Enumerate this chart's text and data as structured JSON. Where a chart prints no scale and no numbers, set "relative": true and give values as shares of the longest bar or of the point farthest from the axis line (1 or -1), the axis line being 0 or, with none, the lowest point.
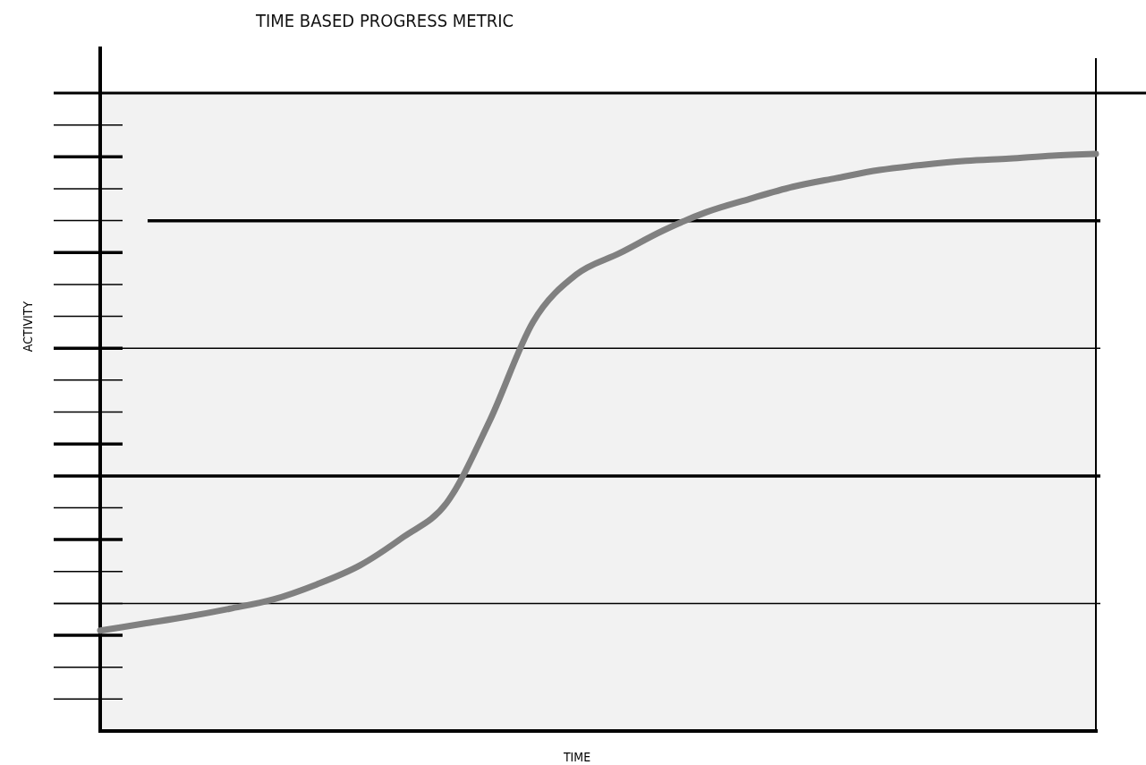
{
  "chart_data": {
    "type": "line",
    "title": "TIME BASED PROGRESS METRIC",
    "xlabel": "TIME",
    "ylabel": "ACTIVITY",
    "relative": true,
    "ref_lines": [
      {
        "axis": "y",
        "value": 0.221,
        "color": "#000000",
        "line_style": "solid"
      },
      {
        "axis": "y",
        "value": 0.442,
        "color": "#000000",
        "line_style": "solid"
      },
      {
        "axis": "y",
        "value": 0.663,
        "color": "#000000",
        "line_style": "solid"
      },
      {
        "axis": "y",
        "value": 0.884,
        "color": "#000000",
        "line_style": "solid"
      }
    ],
    "marker": "none",
    "line_style": "solid",
    "categories": [
      null,
      null,
      null,
      null,
      null,
      null,
      null,
      null,
      null,
      null,
      null,
      null,
      null,
      null,
      null,
      null,
      null,
      null,
      null,
      null,
      null,
      null,
      null,
      null
    ],
    "series": [
      {
        "color": "#808080",
        "values": [
          0.174,
          0.186,
          0.198,
          0.212,
          0.228,
          0.254,
          0.287,
          0.336,
          0.395,
          0.538,
          0.709,
          0.791,
          0.828,
          0.867,
          0.899,
          0.922,
          0.943,
          0.958,
          0.972,
          0.981,
          0.988,
          0.992,
          0.997,
          1
        ]
      }
    ]
  }
}
